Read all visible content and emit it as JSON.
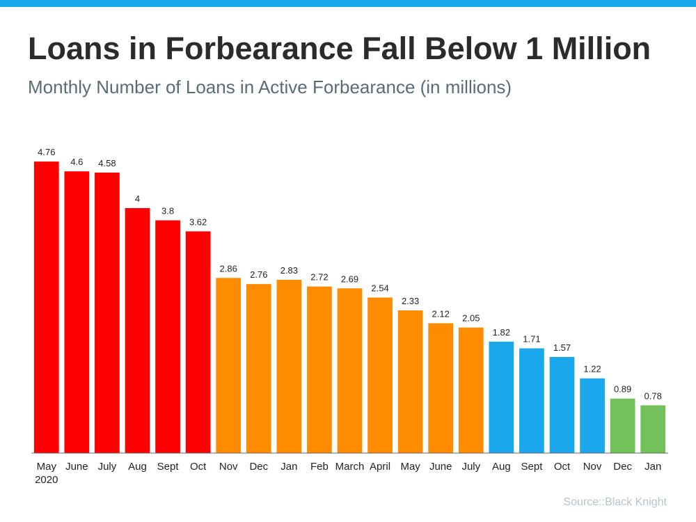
{
  "header": {
    "title": "Loans in Forbearance Fall Below 1 Million",
    "subtitle": "Monthly Number of Loans in Active Forbearance (in millions)"
  },
  "footer": {
    "source": "Source::Black Knight"
  },
  "colors": {
    "accent_bar": "#1aa7ec",
    "red": "#ff0000",
    "orange": "#ff8c00",
    "blue": "#1aa7ec",
    "green": "#72c15a"
  },
  "chart_data": {
    "type": "bar",
    "title": "Loans in Forbearance Fall Below 1 Million",
    "subtitle": "Monthly Number of Loans in Active Forbearance (in millions)",
    "xlabel": "",
    "ylabel": "",
    "ylim": [
      0,
      5
    ],
    "grid": false,
    "legend": "none",
    "categories": [
      "May",
      "June",
      "July",
      "Aug",
      "Sept",
      "Oct",
      "Nov",
      "Dec",
      "Jan",
      "Feb",
      "March",
      "April",
      "May",
      "June",
      "July",
      "Aug",
      "Sept",
      "Oct",
      "Nov",
      "Dec",
      "Jan"
    ],
    "first_category_sublabel": "2020",
    "values": [
      4.76,
      4.6,
      4.58,
      4,
      3.8,
      3.62,
      2.86,
      2.76,
      2.83,
      2.72,
      2.69,
      2.54,
      2.33,
      2.12,
      2.05,
      1.82,
      1.71,
      1.57,
      1.22,
      0.89,
      0.78
    ],
    "bar_colors": [
      "#ff0000",
      "#ff0000",
      "#ff0000",
      "#ff0000",
      "#ff0000",
      "#ff0000",
      "#ff8c00",
      "#ff8c00",
      "#ff8c00",
      "#ff8c00",
      "#ff8c00",
      "#ff8c00",
      "#ff8c00",
      "#ff8c00",
      "#ff8c00",
      "#1aa7ec",
      "#1aa7ec",
      "#1aa7ec",
      "#1aa7ec",
      "#72c15a",
      "#72c15a"
    ]
  }
}
